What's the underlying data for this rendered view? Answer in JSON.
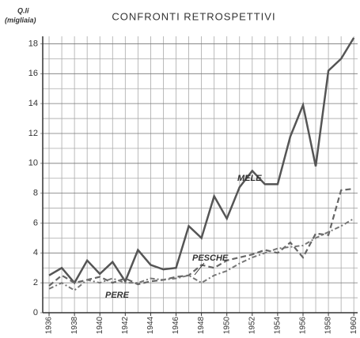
{
  "chart_data": {
    "type": "line",
    "title": "CONFRONTI RETROSPETTIVI",
    "ylabel": [
      "Q.li",
      "(migliaia)"
    ],
    "x": [
      1936,
      1937,
      1938,
      1939,
      1940,
      1941,
      1942,
      1943,
      1944,
      1945,
      1946,
      1947,
      1948,
      1949,
      1950,
      1951,
      1952,
      1953,
      1954,
      1955,
      1956,
      1957,
      1958,
      1959,
      1960
    ],
    "series": [
      {
        "name": "MELE",
        "color": "#555555",
        "dash": "solid",
        "values": [
          2.5,
          3.0,
          2.0,
          3.5,
          2.6,
          3.4,
          2.1,
          4.2,
          3.2,
          2.9,
          3.0,
          5.8,
          5.0,
          7.8,
          6.3,
          8.4,
          9.5,
          8.6,
          8.6,
          11.8,
          13.9,
          9.8,
          16.2,
          17.0,
          18.4
        ]
      },
      {
        "name": "PESCHE",
        "color": "#666666",
        "dash": "dashed",
        "values": [
          1.8,
          2.5,
          2.0,
          2.2,
          2.4,
          2.0,
          2.3,
          1.9,
          2.1,
          2.2,
          2.4,
          2.5,
          3.2,
          3.0,
          3.5,
          3.7,
          3.9,
          4.2,
          4.0,
          4.7,
          3.7,
          5.3,
          5.2,
          8.2,
          8.3
        ]
      },
      {
        "name": "PERE",
        "color": "#777777",
        "dash": "dashdot",
        "values": [
          1.6,
          2.0,
          1.5,
          2.2,
          2.0,
          2.3,
          2.0,
          2.0,
          2.3,
          2.2,
          2.3,
          2.5,
          2.0,
          2.5,
          2.8,
          3.3,
          3.7,
          4.0,
          4.3,
          4.4,
          4.5,
          5.0,
          5.4,
          5.8,
          6.3
        ]
      }
    ],
    "xlim": [
      1935.5,
      1960.3
    ],
    "xticks": [
      1936,
      1938,
      1940,
      1942,
      1944,
      1946,
      1948,
      1950,
      1952,
      1954,
      1956,
      1958,
      1960
    ],
    "ylim": [
      0,
      18.5
    ],
    "yticks": [
      0,
      2,
      4,
      6,
      8,
      10,
      12,
      14,
      16,
      18
    ],
    "y_minor_ticks": [
      1,
      3,
      5,
      7,
      9,
      11,
      13,
      15,
      17
    ],
    "grid": true
  }
}
